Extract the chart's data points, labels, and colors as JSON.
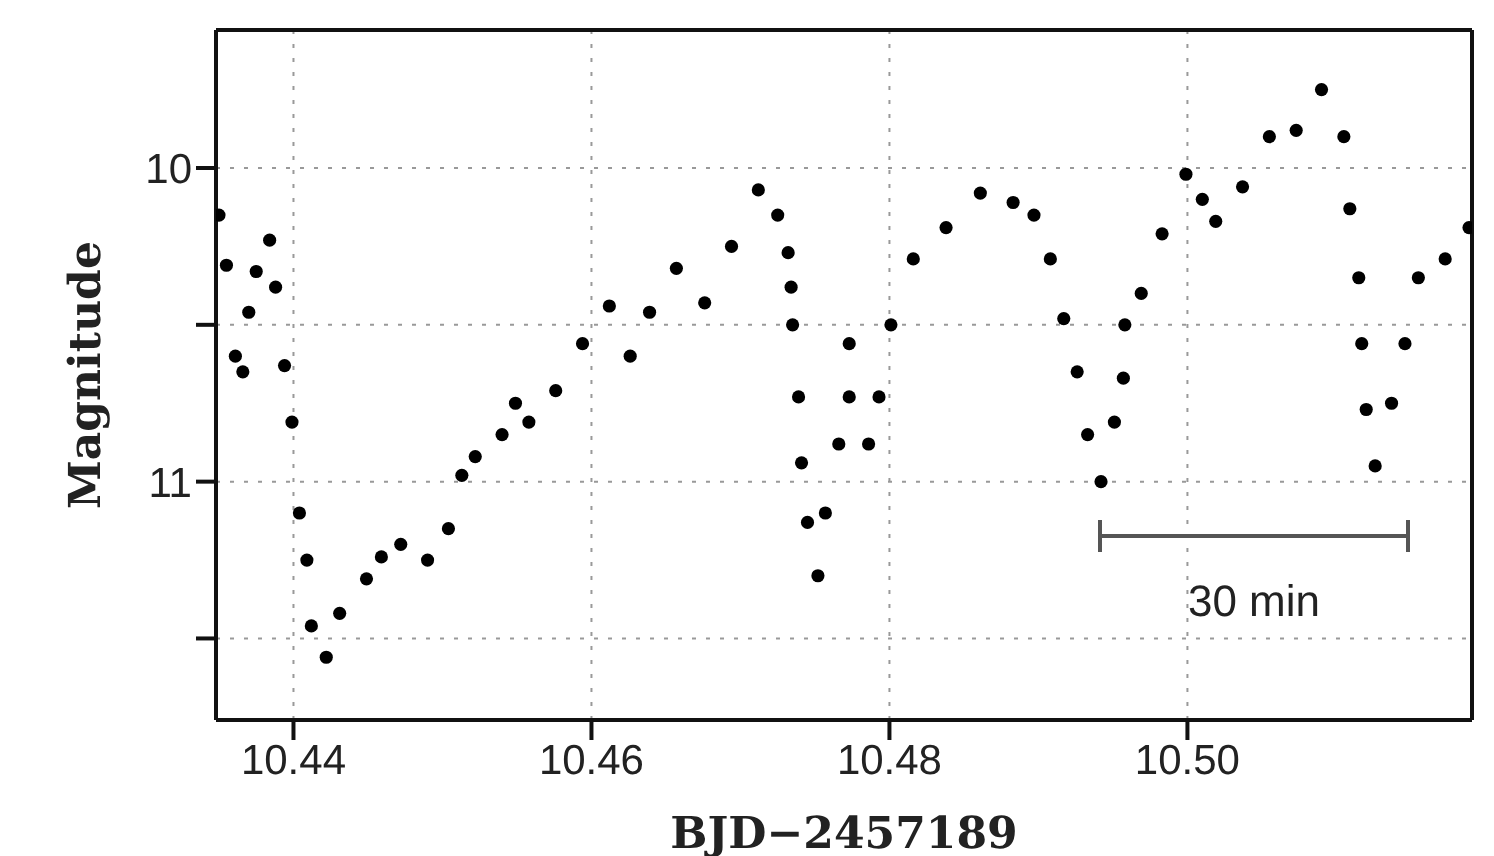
{
  "chart_data": {
    "type": "scatter",
    "xlabel": "BJD−2457189",
    "ylabel": "Magnitude",
    "marker": "circle",
    "grid": true,
    "xlim": [
      10.4348,
      10.5191
    ],
    "ylim": [
      11.76,
      9.56
    ],
    "xticks": [
      10.44,
      10.46,
      10.48,
      {
        "value": 10.5,
        "label": "10.50"
      }
    ],
    "yticks": [
      10,
      {
        "value": 10.5,
        "label": null
      },
      11,
      {
        "value": 11.5,
        "label": null
      }
    ],
    "annotations": [
      "30 min"
    ],
    "series": [
      {
        "color": "#000000",
        "x": [
          10.435,
          10.4355,
          10.4361,
          10.4366,
          10.437,
          10.4375,
          10.4384,
          10.4388,
          10.4394,
          10.4399,
          10.4404,
          10.4409,
          10.4412,
          10.4422,
          10.4431,
          10.4449,
          10.4459,
          10.4472,
          10.449,
          10.4504,
          10.4513,
          10.4522,
          10.454,
          10.4549,
          10.4558,
          10.4576,
          10.4594,
          10.4612,
          10.4626,
          10.4639,
          10.4657,
          10.4676,
          10.4694,
          10.4712,
          10.4725,
          10.4732,
          10.4734,
          10.4735,
          10.4739,
          10.4741,
          10.4745,
          10.4752,
          10.4757,
          10.4766,
          10.4773,
          10.4773,
          10.4786,
          10.4793,
          10.4801,
          10.4816,
          10.4838,
          10.4861,
          10.4883,
          10.4897,
          10.4908,
          10.4917,
          10.4926,
          10.4933,
          10.4942,
          10.4951,
          10.4957,
          10.4958,
          10.4969,
          10.4983,
          10.4999,
          10.501,
          10.5019,
          10.5037,
          10.5055,
          10.5073,
          10.509,
          10.5105,
          10.5109,
          10.5115,
          10.5117,
          10.512,
          10.5126,
          10.5137,
          10.5146,
          10.5155,
          10.5173,
          10.5189
        ],
        "values": [
          10.15,
          10.31,
          10.6,
          10.65,
          10.46,
          10.33,
          10.23,
          10.38,
          10.63,
          10.81,
          11.1,
          11.25,
          11.46,
          11.56,
          11.42,
          11.31,
          11.24,
          11.2,
          11.25,
          11.15,
          10.98,
          10.92,
          10.85,
          10.75,
          10.81,
          10.71,
          10.56,
          10.44,
          10.6,
          10.46,
          10.32,
          10.43,
          10.25,
          10.07,
          10.15,
          10.27,
          10.38,
          10.5,
          10.73,
          10.94,
          11.13,
          11.3,
          11.1,
          10.88,
          10.73,
          10.56,
          10.88,
          10.73,
          10.5,
          10.29,
          10.19,
          10.08,
          10.11,
          10.15,
          10.29,
          10.48,
          10.65,
          10.85,
          11.0,
          10.81,
          10.67,
          10.5,
          10.4,
          10.21,
          10.02,
          10.1,
          10.17,
          10.06,
          9.9,
          9.88,
          9.75,
          9.9,
          10.13,
          10.35,
          10.56,
          10.77,
          10.95,
          10.75,
          10.56,
          10.35,
          10.29,
          10.19
        ]
      }
    ]
  }
}
